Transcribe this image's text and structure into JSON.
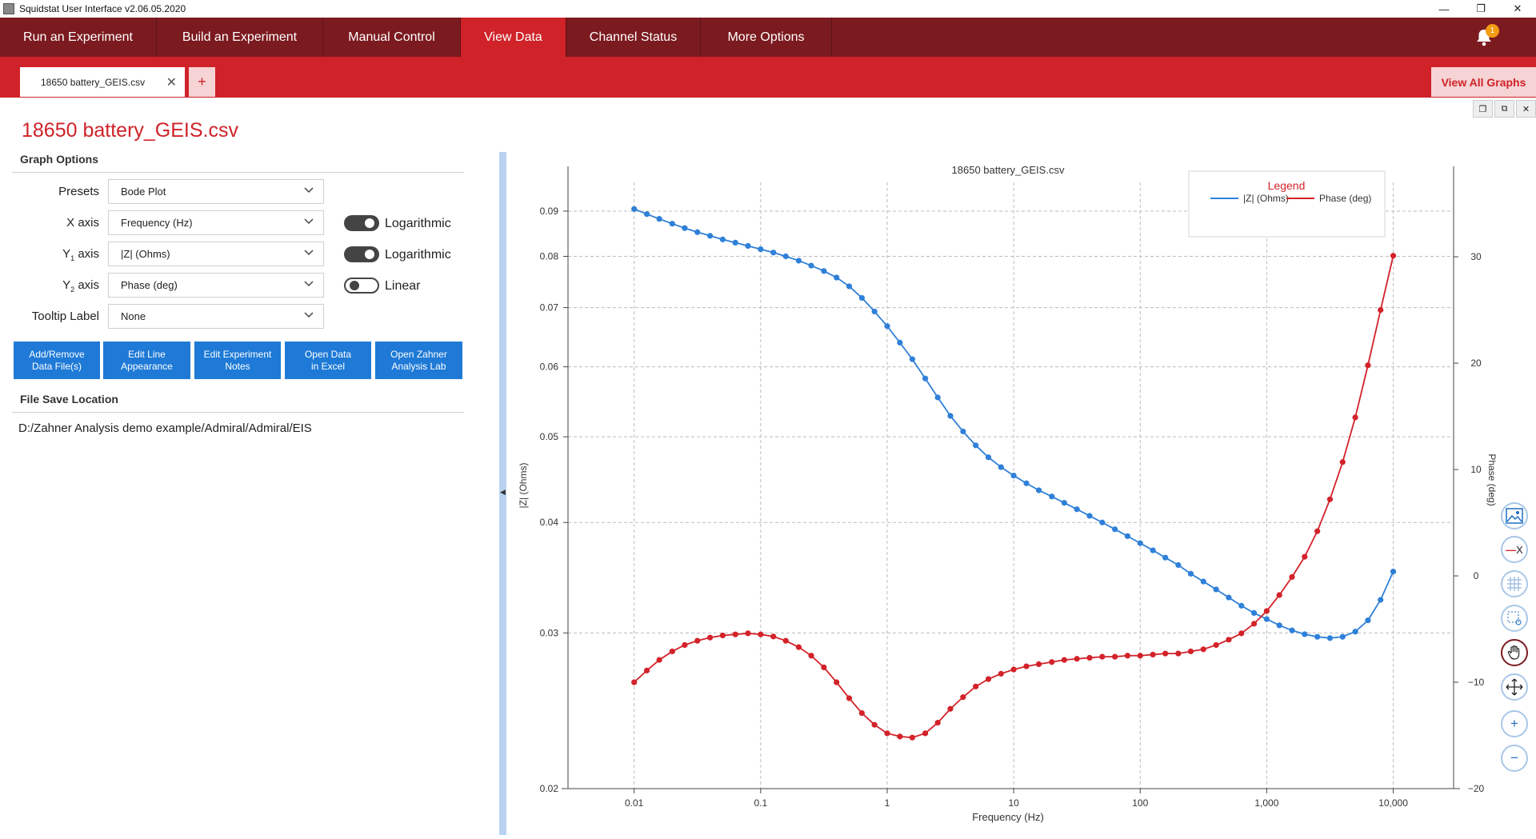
{
  "window": {
    "title": "Squidstat User Interface v2.06.05.2020"
  },
  "nav": {
    "items": [
      "Run an Experiment",
      "Build an Experiment",
      "Manual Control",
      "View Data",
      "Channel Status",
      "More Options"
    ],
    "active": "View Data",
    "notification_count": "1"
  },
  "tabs": {
    "active_tab": "18650 battery_GEIS.csv",
    "add_label": "+",
    "view_all": "View All Graphs"
  },
  "panel": {
    "file_title": "18650 battery_GEIS.csv",
    "graph_options_header": "Graph Options",
    "presets_label": "Presets",
    "presets_value": "Bode Plot",
    "xaxis_label": "X axis",
    "xaxis_value": "Frequency (Hz)",
    "xaxis_scale": "Logarithmic",
    "y1_label_main": "Y",
    "y1_label_sub": "1",
    "y1_label_tail": " axis",
    "y1_value": "|Z| (Ohms)",
    "y1_scale": "Logarithmic",
    "y2_label_main": "Y",
    "y2_label_sub": "2",
    "y2_label_tail": " axis",
    "y2_value": "Phase (deg)",
    "y2_scale": "Linear",
    "tooltip_label": "Tooltip Label",
    "tooltip_value": "None",
    "buttons": [
      "Add/Remove\nData File(s)",
      "Edit Line\nAppearance",
      "Edit Experiment\nNotes",
      "Open Data\nin Excel",
      "Open Zahner\nAnalysis Lab"
    ],
    "file_save_header": "File Save Location",
    "file_save_path": "D:/Zahner Analysis demo example/Admiral/Admiral/EIS"
  },
  "colors": {
    "z_series": "#2f80d8",
    "phase_series": "#d3222a",
    "accent": "#cf2229",
    "nav_bg": "#7b1a1f"
  },
  "chart_data": {
    "type": "line",
    "title": "18650 battery_GEIS.csv",
    "xlabel": "Frequency (Hz)",
    "ylabel": "|Z| (Ohms)",
    "y2label": "Phase (deg)",
    "x_scale": "log",
    "y_scale": "log",
    "y2_scale": "linear",
    "xlim": [
      0.003,
      30000
    ],
    "ylim": [
      0.02,
      0.097
    ],
    "y2lim": [
      -20,
      37
    ],
    "x_ticks": [
      0.01,
      0.1,
      1,
      10,
      100,
      1000,
      10000
    ],
    "x_tick_labels": [
      "0.01",
      "0.1",
      "1",
      "10",
      "100",
      "1,000",
      "10,000"
    ],
    "y_ticks": [
      0.02,
      0.03,
      0.04,
      0.05,
      0.06,
      0.07,
      0.08,
      0.09
    ],
    "y_tick_labels": [
      "0.02",
      "0.03",
      "0.04",
      "0.05",
      "0.06",
      "0.07",
      "0.08",
      "0.09"
    ],
    "y2_ticks": [
      -20,
      -10,
      0,
      10,
      20,
      30
    ],
    "y2_tick_labels": [
      "−20",
      "−10",
      "0",
      "10",
      "20",
      "30"
    ],
    "grid": true,
    "legend": {
      "title": "Legend",
      "position": "top-right"
    },
    "x": [
      0.01,
      0.0126,
      0.0158,
      0.02,
      0.0251,
      0.0316,
      0.0398,
      0.0501,
      0.0631,
      0.0794,
      0.1,
      0.126,
      0.158,
      0.2,
      0.251,
      0.316,
      0.398,
      0.501,
      0.631,
      0.794,
      1,
      1.26,
      1.58,
      2,
      2.51,
      3.16,
      3.98,
      5.01,
      6.31,
      7.94,
      10,
      12.6,
      15.8,
      20,
      25.1,
      31.6,
      39.8,
      50.1,
      63.1,
      79.4,
      100,
      126,
      158,
      200,
      251,
      316,
      398,
      501,
      631,
      794,
      1000,
      1259,
      1585,
      1995,
      2512,
      3162,
      3981,
      5012,
      6310,
      7943,
      10000
    ],
    "series": [
      {
        "name": "|Z| (Ohms)",
        "axis": "y1",
        "values": [
          0.0905,
          0.0893,
          0.0882,
          0.0871,
          0.0861,
          0.0852,
          0.0844,
          0.0836,
          0.0829,
          0.0822,
          0.0815,
          0.0808,
          0.08,
          0.0791,
          0.0781,
          0.077,
          0.0757,
          0.074,
          0.0718,
          0.0693,
          0.0667,
          0.0639,
          0.0612,
          0.0582,
          0.0554,
          0.0528,
          0.0507,
          0.0489,
          0.0474,
          0.0462,
          0.0452,
          0.0443,
          0.0435,
          0.0428,
          0.0421,
          0.0414,
          0.0407,
          0.04,
          0.0393,
          0.0386,
          0.0379,
          0.0372,
          0.0365,
          0.0358,
          0.035,
          0.0343,
          0.0336,
          0.0329,
          0.0322,
          0.0316,
          0.0311,
          0.0306,
          0.0302,
          0.0299,
          0.0297,
          0.0296,
          0.0297,
          0.0301,
          0.031,
          0.0327,
          0.0352
        ]
      },
      {
        "name": "Phase (deg)",
        "axis": "y2",
        "values": [
          -10.0,
          -8.9,
          -7.9,
          -7.1,
          -6.5,
          -6.1,
          -5.8,
          -5.6,
          -5.5,
          -5.4,
          -5.5,
          -5.7,
          -6.1,
          -6.7,
          -7.5,
          -8.6,
          -10.0,
          -11.5,
          -12.9,
          -14.0,
          -14.8,
          -15.1,
          -15.2,
          -14.8,
          -13.8,
          -12.5,
          -11.4,
          -10.4,
          -9.7,
          -9.2,
          -8.8,
          -8.5,
          -8.3,
          -8.1,
          -7.9,
          -7.8,
          -7.7,
          -7.6,
          -7.6,
          -7.5,
          -7.5,
          -7.4,
          -7.3,
          -7.3,
          -7.1,
          -6.9,
          -6.5,
          -6.0,
          -5.4,
          -4.5,
          -3.3,
          -1.8,
          -0.1,
          1.8,
          4.2,
          7.2,
          10.7,
          14.9,
          19.8,
          25.0,
          30.1
        ]
      }
    ]
  }
}
